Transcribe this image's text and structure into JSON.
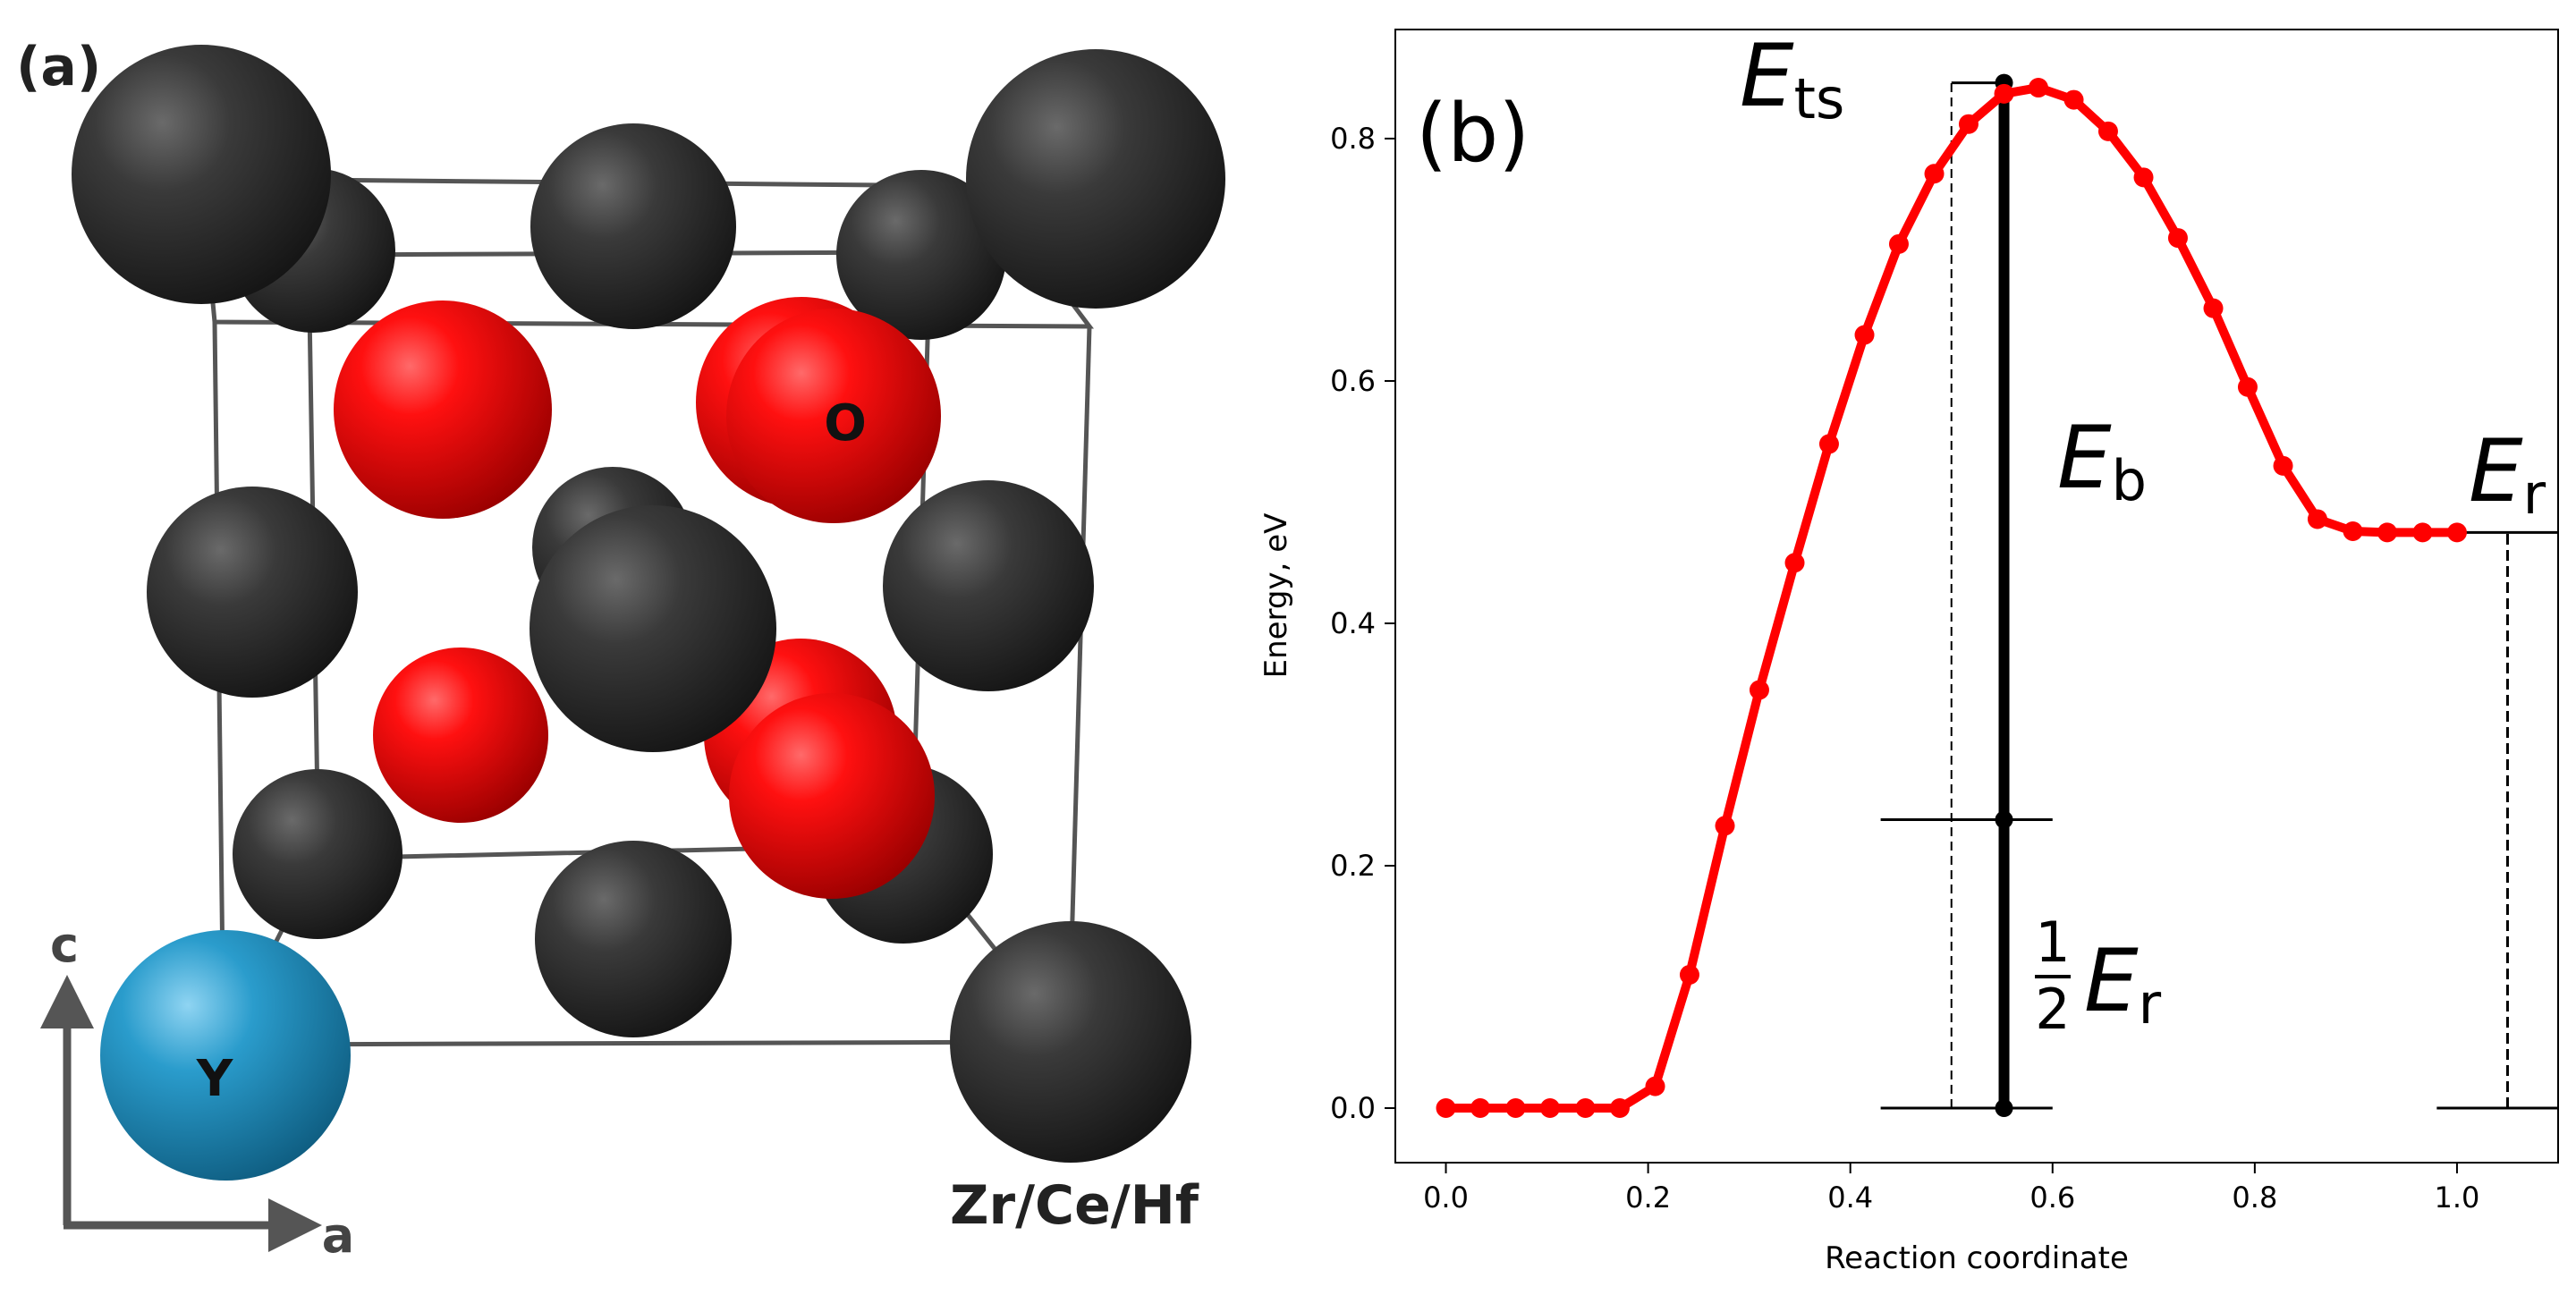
{
  "panel_a": {
    "label": "(a)",
    "atoms": {
      "o_label": "O",
      "y_label": "Y",
      "host_label": "Zr/Ce/Hf"
    },
    "axes": {
      "c_label": "c",
      "a_label": "a"
    },
    "colors": {
      "host_atom": "#2b2b2b",
      "oxygen_atom": "#e00000",
      "yttrium_atom": "#1a86b8",
      "cell_edge": "#555555",
      "axis_arrow": "#555555"
    }
  },
  "panel_b": {
    "label": "(b)",
    "colors": {
      "curve": "#ff0000",
      "annotation": "#000000"
    },
    "annotations": {
      "e_ts": {
        "symbol": "E",
        "subscript": "ts"
      },
      "e_b": {
        "symbol": "E",
        "subscript": "b"
      },
      "e_r": {
        "symbol": "E",
        "subscript": "r"
      },
      "half_e_r": {
        "numerator": "1",
        "denominator": "2",
        "symbol": "E",
        "subscript": "r"
      }
    }
  },
  "chart_data": {
    "type": "line",
    "title": "",
    "xlabel": "Reaction coordinate",
    "ylabel": "Energy, eV",
    "xlim": [
      -0.05,
      1.1
    ],
    "ylim": [
      -0.045,
      0.89
    ],
    "xticks": [
      "0.0",
      "0.2",
      "0.4",
      "0.6",
      "0.8",
      "1.0"
    ],
    "yticks": [
      "0.0",
      "0.2",
      "0.4",
      "0.6",
      "0.8"
    ],
    "grid": false,
    "series": [
      {
        "color": "#ff0000",
        "marker": "circle",
        "x": [
          0.0,
          0.034,
          0.069,
          0.103,
          0.138,
          0.172,
          0.207,
          0.241,
          0.276,
          0.31,
          0.345,
          0.379,
          0.414,
          0.448,
          0.483,
          0.517,
          0.552,
          0.586,
          0.621,
          0.655,
          0.69,
          0.724,
          0.759,
          0.793,
          0.828,
          0.862,
          0.897,
          0.931,
          0.966,
          1.0
        ],
        "y": [
          0.0,
          0.0,
          0.0,
          0.0,
          0.0,
          0.0,
          0.018,
          0.11,
          0.233,
          0.345,
          0.45,
          0.548,
          0.638,
          0.713,
          0.771,
          0.812,
          0.837,
          0.842,
          0.832,
          0.806,
          0.768,
          0.718,
          0.66,
          0.595,
          0.53,
          0.486,
          0.476,
          0.475,
          0.475,
          0.475
        ]
      }
    ],
    "reference_lines": {
      "e_ts_level": 0.846,
      "half_e_r_level": 0.238,
      "e_r_level": 0.475,
      "ts_x": 0.552,
      "half_x": 0.5,
      "r_x": 1.05
    }
  }
}
